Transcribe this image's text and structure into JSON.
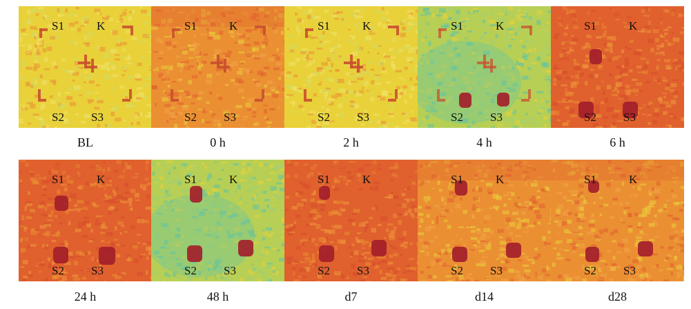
{
  "panels": [
    {
      "caption": "BL",
      "s1": "S1",
      "k": "K",
      "s2": "S2",
      "s3": "S3",
      "palette": "yellow"
    },
    {
      "caption": "0 h",
      "s1": "S1",
      "k": "K",
      "s2": "S2",
      "s3": "S3",
      "palette": "orange"
    },
    {
      "caption": "2 h",
      "s1": "S1",
      "k": "K",
      "s2": "S2",
      "s3": "S3",
      "palette": "yellow"
    },
    {
      "caption": "4 h",
      "s1": "S1",
      "k": "K",
      "s2": "S2",
      "s3": "S3",
      "palette": "green"
    },
    {
      "caption": "6 h",
      "s1": "S1",
      "k": "K",
      "s2": "S2",
      "s3": "S3",
      "palette": "red"
    },
    {
      "caption": "24 h",
      "s1": "S1",
      "k": "K",
      "s2": "S2",
      "s3": "S3",
      "palette": "red"
    },
    {
      "caption": "48 h",
      "s1": "S1",
      "k": "K",
      "s2": "S2",
      "s3": "S3",
      "palette": "green"
    },
    {
      "caption": "d7",
      "s1": "S1",
      "k": "K",
      "s2": "S2",
      "s3": "S3",
      "palette": "red"
    },
    {
      "caption": "d14",
      "s1": "S1",
      "k": "K",
      "s2": "S2",
      "s3": "S3",
      "palette": "orange"
    },
    {
      "caption": "d28",
      "s1": "S1",
      "k": "K",
      "s2": "S2",
      "s3": "S3",
      "palette": "orange"
    }
  ],
  "colors": {
    "yellow": "#e9d13a",
    "orange": "#eb8f33",
    "red": "#e0602e",
    "green": "#b7cf55",
    "cyan": "#5fc3a8",
    "lesion": "#a3202a"
  }
}
